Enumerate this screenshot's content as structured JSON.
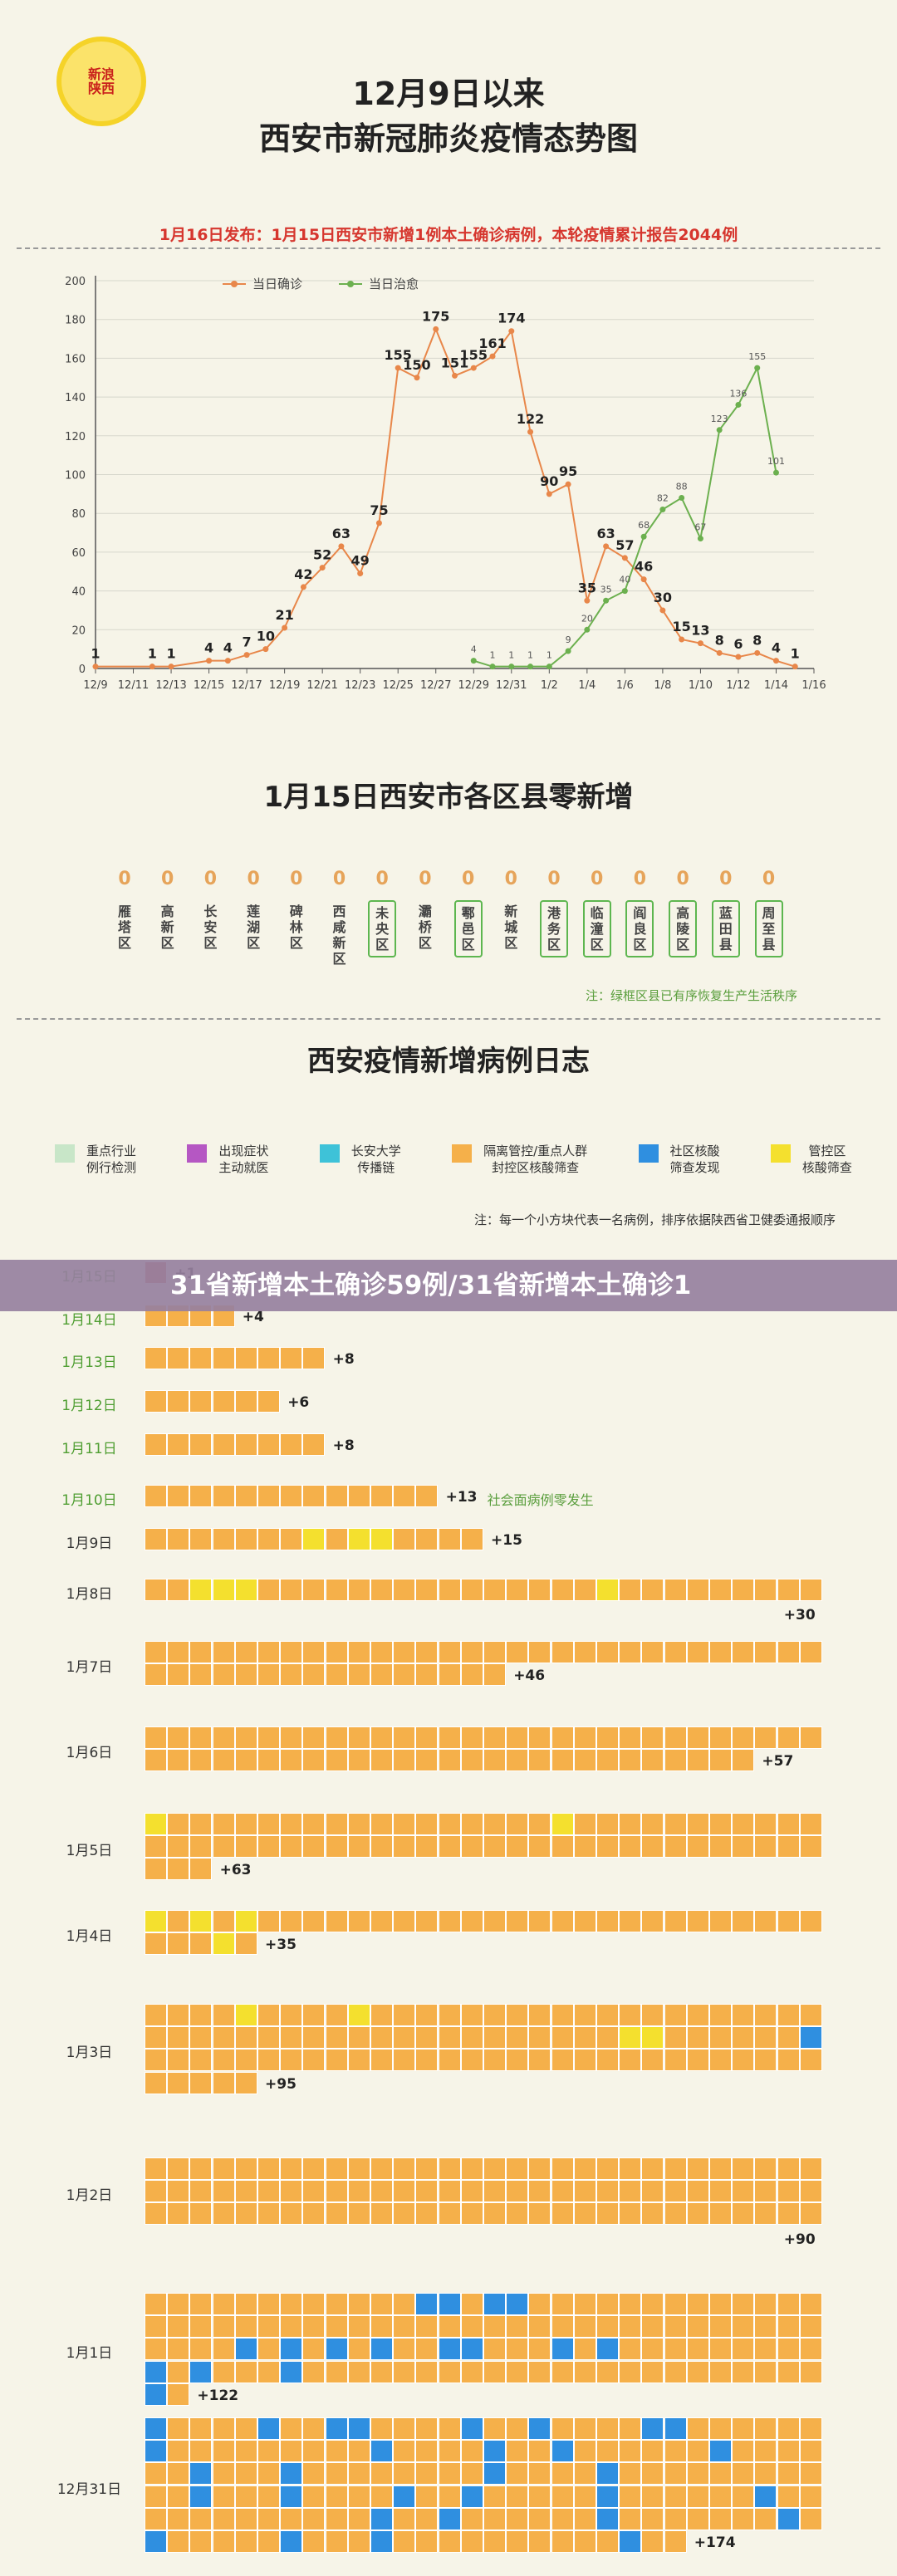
{
  "logo": {
    "line1": "新浪",
    "line2": "陕西"
  },
  "header": {
    "title_line1": "12月9日以来",
    "title_line2": "西安市新冠肺炎疫情态势图"
  },
  "notice": "1月16日发布：1月15日西安市新增1例本土确诊病例，本轮疫情累计报告2044例",
  "colors": {
    "confirmed": "#e8874a",
    "cured": "#6cb04f",
    "quarantine": "#f5b04a",
    "industry": "#c8e6c8",
    "symptom": "#b557c3",
    "university": "#3ec2d8",
    "community": "#2f8fe0",
    "control": "#f4e02e",
    "cell_bg": "#ffffff"
  },
  "chart_data": {
    "type": "line",
    "x": [
      "12/9",
      "12/10",
      "12/11",
      "12/12",
      "12/13",
      "12/14",
      "12/15",
      "12/16",
      "12/17",
      "12/18",
      "12/19",
      "12/20",
      "12/21",
      "12/22",
      "12/23",
      "12/24",
      "12/25",
      "12/26",
      "12/27",
      "12/28",
      "12/29",
      "12/30",
      "12/31",
      "1/1",
      "1/2",
      "1/3",
      "1/4",
      "1/5",
      "1/6",
      "1/7",
      "1/8",
      "1/9",
      "1/10",
      "1/11",
      "1/12",
      "1/13",
      "1/14",
      "1/15"
    ],
    "x_ticks": [
      "12/9",
      "12/11",
      "12/13",
      "12/15",
      "12/17",
      "12/19",
      "12/21",
      "12/23",
      "12/25",
      "12/27",
      "12/29",
      "12/31",
      "1/2",
      "1/4",
      "1/6",
      "1/8",
      "1/10",
      "1/12",
      "1/14",
      "1/16"
    ],
    "ylim": [
      0,
      200
    ],
    "y_ticks": [
      0,
      20,
      40,
      60,
      80,
      100,
      120,
      140,
      160,
      180,
      200
    ],
    "series": [
      {
        "name": "当日确诊",
        "values": [
          1,
          null,
          null,
          1,
          1,
          null,
          4,
          4,
          7,
          10,
          21,
          42,
          52,
          63,
          49,
          75,
          155,
          150,
          175,
          151,
          155,
          161,
          174,
          122,
          90,
          95,
          35,
          63,
          57,
          46,
          30,
          15,
          13,
          8,
          6,
          8,
          4,
          1
        ],
        "labels": [
          "1",
          null,
          null,
          "1",
          "1",
          null,
          "4",
          "4",
          "7",
          "10",
          "21",
          "42",
          "52",
          "63",
          "49",
          "75",
          "155",
          "150",
          "175",
          "151",
          "155",
          "161",
          "174",
          "122",
          "90",
          "95",
          "35",
          "63",
          "57",
          "46",
          "30",
          "15",
          "13",
          "8",
          "6",
          "8",
          "4",
          "1"
        ]
      },
      {
        "name": "当日治愈",
        "values": [
          null,
          null,
          null,
          null,
          null,
          null,
          null,
          null,
          null,
          null,
          null,
          null,
          null,
          null,
          null,
          null,
          null,
          null,
          null,
          null,
          4,
          1,
          1,
          1,
          1,
          9,
          20,
          35,
          40,
          68,
          82,
          88,
          67,
          123,
          136,
          155,
          101,
          null
        ],
        "labels": [
          null,
          null,
          null,
          null,
          null,
          null,
          null,
          null,
          null,
          null,
          null,
          null,
          null,
          null,
          null,
          null,
          null,
          null,
          null,
          null,
          "4",
          "1",
          "1",
          "1",
          "1",
          "9",
          "20",
          "35",
          "40",
          "68",
          "82",
          "88",
          "67",
          "123",
          "136",
          "155",
          "101",
          null
        ]
      }
    ]
  },
  "districts": {
    "title": "1月15日西安市各区县零新增",
    "note": "注：绿框区县已有序恢复生产生活秩序",
    "items": [
      {
        "name": "雁塔区",
        "value": "0",
        "green": false
      },
      {
        "name": "高新区",
        "value": "0",
        "green": false
      },
      {
        "name": "长安区",
        "value": "0",
        "green": false
      },
      {
        "name": "莲湖区",
        "value": "0",
        "green": false
      },
      {
        "name": "碑林区",
        "value": "0",
        "green": false
      },
      {
        "name": "西咸新区",
        "value": "0",
        "green": false
      },
      {
        "name": "未央区",
        "value": "0",
        "green": true
      },
      {
        "name": "灞桥区",
        "value": "0",
        "green": false
      },
      {
        "name": "鄠邑区",
        "value": "0",
        "green": true
      },
      {
        "name": "新城区",
        "value": "0",
        "green": false
      },
      {
        "name": "港务区",
        "value": "0",
        "green": true
      },
      {
        "name": "临潼区",
        "value": "0",
        "green": true
      },
      {
        "name": "阎良区",
        "value": "0",
        "green": true
      },
      {
        "name": "高陵区",
        "value": "0",
        "green": true
      },
      {
        "name": "蓝田县",
        "value": "0",
        "green": true
      },
      {
        "name": "周至县",
        "value": "0",
        "green": true
      }
    ]
  },
  "diary": {
    "title": "西安疫情新增病例日志",
    "legend": [
      {
        "line1": "重点行业",
        "line2": "例行检测",
        "color": "industry"
      },
      {
        "line1": "出现症状",
        "line2": "主动就医",
        "color": "symptom"
      },
      {
        "line1": "长安大学",
        "line2": "传播链",
        "color": "university"
      },
      {
        "line1": "隔离管控/重点人群",
        "line2": "封控区核酸筛查",
        "color": "quarantine"
      },
      {
        "line1": "社区核酸",
        "line2": "筛查发现",
        "color": "community"
      },
      {
        "line1": "管控区",
        "line2": "核酸筛查",
        "color": "control"
      }
    ],
    "note": "注：每一个小方块代表一名病例，排序依据陕西省卫健委通报顺序",
    "days": [
      {
        "date": "1月15日",
        "count": "+1",
        "n": 1,
        "green": true,
        "yellow": [],
        "blue": [],
        "red": [
          0
        ]
      },
      {
        "date": "1月14日",
        "count": "+4",
        "n": 4,
        "green": true,
        "yellow": [],
        "blue": [],
        "red": []
      },
      {
        "date": "1月13日",
        "count": "+8",
        "n": 8,
        "green": true,
        "yellow": [],
        "blue": [],
        "red": []
      },
      {
        "date": "1月12日",
        "count": "+6",
        "n": 6,
        "green": true,
        "yellow": [],
        "blue": [],
        "red": []
      },
      {
        "date": "1月11日",
        "count": "+8",
        "n": 8,
        "green": true,
        "yellow": [],
        "blue": [],
        "red": []
      },
      {
        "date": "1月10日",
        "count": "+13",
        "n": 13,
        "green": true,
        "note": "社会面病例零发生",
        "yellow": [],
        "blue": [],
        "red": []
      },
      {
        "date": "1月9日",
        "count": "+15",
        "n": 15,
        "green": false,
        "yellow": [
          7,
          9,
          10
        ],
        "blue": [],
        "red": []
      },
      {
        "date": "1月8日",
        "count": "+30",
        "n": 30,
        "green": false,
        "yellow": [
          2,
          3,
          4,
          20
        ],
        "blue": [],
        "red": []
      },
      {
        "date": "1月7日",
        "count": "+46",
        "n": 46,
        "green": false,
        "yellow": [],
        "blue": [],
        "red": []
      },
      {
        "date": "1月6日",
        "count": "+57",
        "n": 57,
        "green": false,
        "yellow": [],
        "blue": [],
        "red": []
      },
      {
        "date": "1月5日",
        "count": "+63",
        "n": 63,
        "green": false,
        "yellow": [
          0,
          18
        ],
        "blue": [],
        "red": []
      },
      {
        "date": "1月4日",
        "count": "+35",
        "n": 35,
        "green": false,
        "yellow": [
          0,
          2,
          4,
          33
        ],
        "blue": [],
        "red": []
      },
      {
        "date": "1月3日",
        "count": "+95",
        "n": 95,
        "green": false,
        "yellow": [
          4,
          9,
          51,
          52
        ],
        "blue": [
          59
        ],
        "red": []
      },
      {
        "date": "1月2日",
        "count": "+90",
        "n": 90,
        "green": false,
        "yellow": [],
        "blue": [],
        "red": []
      },
      {
        "date": "1月1日",
        "count": "+122",
        "n": 122,
        "green": false,
        "yellow": [],
        "blue": [
          12,
          13,
          15,
          16,
          64,
          66,
          68,
          70,
          73,
          74,
          78,
          80,
          90,
          92,
          96,
          120
        ],
        "red": []
      },
      {
        "date": "12月31日",
        "count": "+174",
        "n": 174,
        "green": false,
        "yellow": [],
        "blue": [
          0,
          5,
          8,
          9,
          14,
          17,
          22,
          23,
          30,
          40,
          45,
          48,
          55,
          62,
          66,
          75,
          80,
          92,
          96,
          101,
          104,
          110,
          117,
          130,
          133,
          140,
          148,
          150,
          156,
          160,
          171
        ],
        "red": []
      }
    ]
  },
  "banner": "31省新增本土确诊59例/31省新增本土确诊1"
}
